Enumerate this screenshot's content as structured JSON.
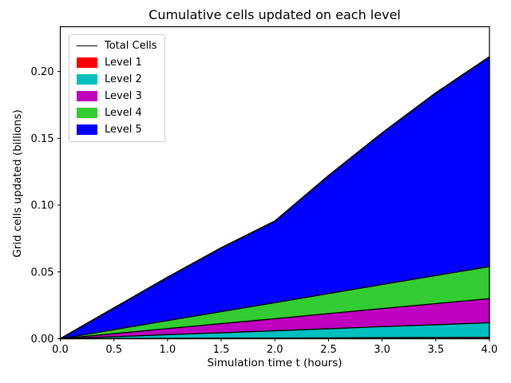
{
  "figure": {
    "background": "#ffffff",
    "text_color": "#000000"
  },
  "chart_data": {
    "type": "area",
    "stacked": true,
    "title": "Cumulative cells updated on each level",
    "xlabel": "Simulation time t (hours)",
    "ylabel": "Grid cells updated (billions)",
    "x": [
      0,
      0.5,
      1,
      1.5,
      2,
      2.5,
      3,
      3.5,
      4
    ],
    "series": [
      {
        "name": "Level 1",
        "color": "#ff0000",
        "values": [
          0,
          0.0001,
          0.0003,
          0.0004,
          0.0005,
          0.0006,
          0.0008,
          0.0009,
          0.001
        ]
      },
      {
        "name": "Level 2",
        "color": "#00bfbf",
        "values": [
          0,
          0.0014,
          0.0028,
          0.0041,
          0.0055,
          0.0069,
          0.0083,
          0.0096,
          0.011
        ]
      },
      {
        "name": "Level 3",
        "color": "#bf00bf",
        "values": [
          0,
          0.0023,
          0.0045,
          0.0068,
          0.009,
          0.0113,
          0.0135,
          0.0158,
          0.018
        ]
      },
      {
        "name": "Level 4",
        "color": "#33cc33",
        "values": [
          0,
          0.003,
          0.006,
          0.009,
          0.012,
          0.015,
          0.018,
          0.021,
          0.024
        ]
      },
      {
        "name": "Level 5",
        "color": "#0000ff",
        "values": [
          0,
          0.0162,
          0.0324,
          0.0477,
          0.061,
          0.0882,
          0.1134,
          0.1367,
          0.157
        ]
      }
    ],
    "total_line": {
      "name": "Total Cells",
      "color": "#000000",
      "values": [
        0,
        0.023,
        0.046,
        0.068,
        0.088,
        0.122,
        0.154,
        0.184,
        0.211
      ]
    },
    "edge_color": "#000000",
    "xlim": [
      0,
      4
    ],
    "ylim": [
      0,
      0.2335
    ],
    "x_ticks": {
      "values": [
        0,
        0.5,
        1,
        1.5,
        2,
        2.5,
        3,
        3.5,
        4
      ],
      "labels": [
        "0.0",
        "0.5",
        "1.0",
        "1.5",
        "2.0",
        "2.5",
        "3.0",
        "3.5",
        "4.0"
      ]
    },
    "y_ticks": {
      "values": [
        0,
        0.05,
        0.1,
        0.15,
        0.2
      ],
      "labels": [
        "0.00",
        "0.05",
        "0.10",
        "0.15",
        "0.20"
      ]
    },
    "grid": false,
    "legend": {
      "position": "upper left",
      "entries": [
        {
          "label": "Total Cells",
          "type": "line",
          "color": "#000000"
        },
        {
          "label": "Level 1",
          "type": "patch",
          "color": "#ff0000"
        },
        {
          "label": "Level 2",
          "type": "patch",
          "color": "#00bfbf"
        },
        {
          "label": "Level 3",
          "type": "patch",
          "color": "#bf00bf"
        },
        {
          "label": "Level 4",
          "type": "patch",
          "color": "#33cc33"
        },
        {
          "label": "Level 5",
          "type": "patch",
          "color": "#0000ff"
        }
      ]
    }
  }
}
